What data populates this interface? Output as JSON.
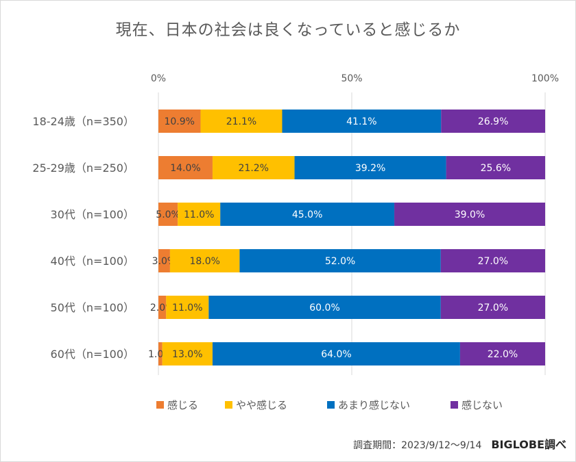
{
  "chart_data": {
    "type": "bar",
    "orientation": "horizontal",
    "stacked": "percent",
    "title": "現在、日本の社会は良くなっていると感じるか",
    "x_ticks": [
      "0%",
      "50%",
      "100%"
    ],
    "xlim": [
      0,
      100
    ],
    "grid": true,
    "legend_position": "bottom",
    "categories": [
      "18-24歳（n=350）",
      "25-29歳（n=250）",
      "30代（n=100）",
      "40代（n=100）",
      "50代（n=100）",
      "60代（n=100）"
    ],
    "series": [
      {
        "name": "感じる",
        "color": "#ED7D31",
        "values": [
          10.9,
          14.0,
          5.0,
          3.0,
          2.0,
          1.0
        ],
        "labels": [
          "10.9%",
          "14.0%",
          "5.0%",
          "3.0%",
          "2.0%",
          "1.0%"
        ]
      },
      {
        "name": "やや感じる",
        "color": "#FFC000",
        "values": [
          21.1,
          21.2,
          11.0,
          18.0,
          11.0,
          13.0
        ],
        "labels": [
          "21.1%",
          "21.2%",
          "11.0%",
          "18.0%",
          "11.0%",
          "13.0%"
        ]
      },
      {
        "name": "あまり感じない",
        "color": "#0070C0",
        "values": [
          41.1,
          39.2,
          45.0,
          52.0,
          60.0,
          64.0
        ],
        "labels": [
          "41.1%",
          "39.2%",
          "45.0%",
          "52.0%",
          "60.0%",
          "64.0%"
        ]
      },
      {
        "name": "感じない",
        "color": "#7030A0",
        "values": [
          26.9,
          25.6,
          39.0,
          27.0,
          27.0,
          22.0
        ],
        "labels": [
          "26.9%",
          "25.6%",
          "39.0%",
          "27.0%",
          "27.0%",
          "22.0%"
        ]
      }
    ]
  },
  "footer": {
    "survey_period": "調査期間：2023/9/12～9/14",
    "brand": "BIGLOBE調べ"
  }
}
